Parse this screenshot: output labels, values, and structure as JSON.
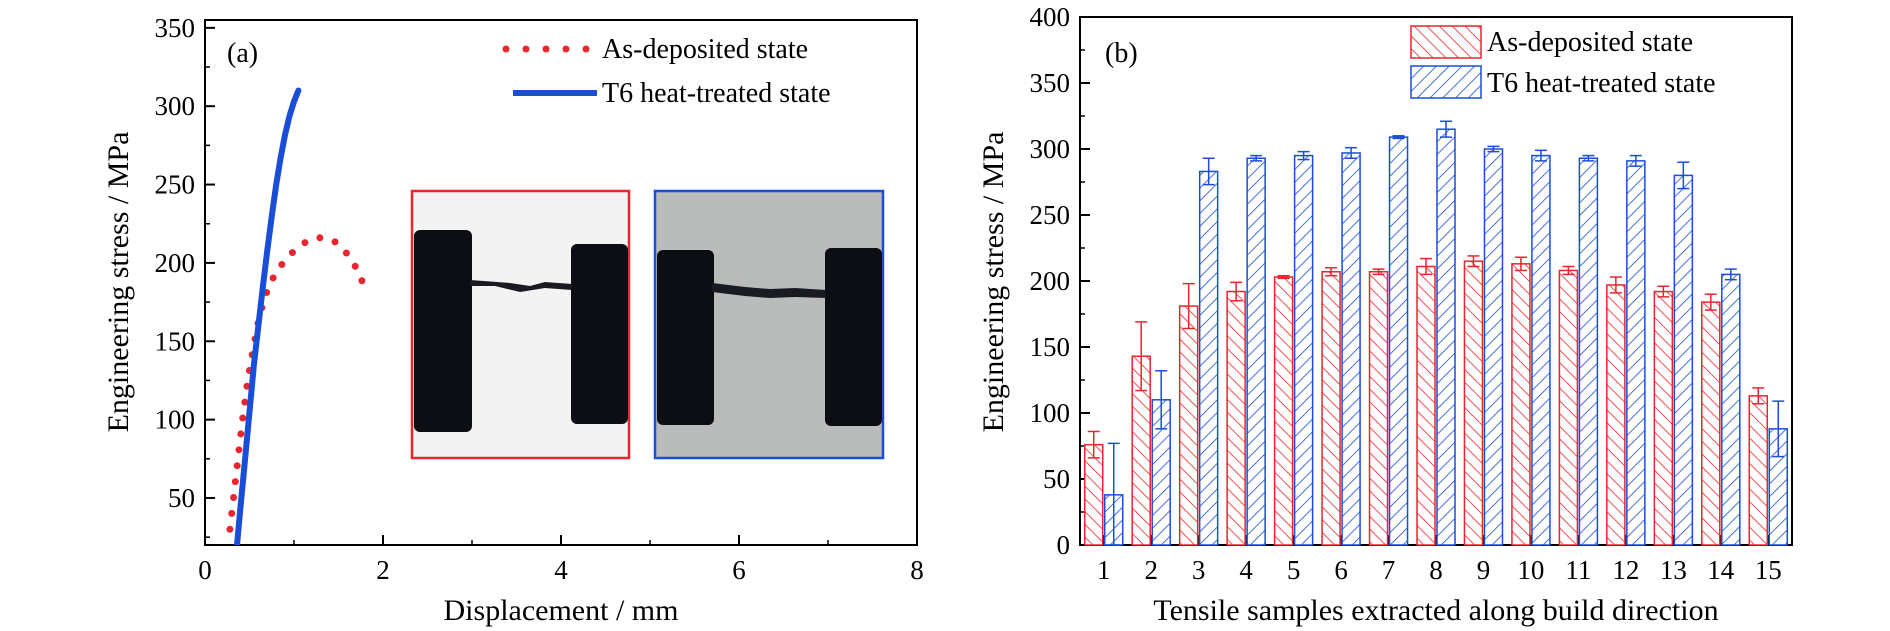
{
  "chart_data": [
    {
      "panel": "(a)",
      "type": "line",
      "xlabel": "Displacement / mm",
      "ylabel": "Engineering stress / MPa",
      "xlim": [
        0,
        8
      ],
      "ylim": [
        20,
        355
      ],
      "xticks": [
        0,
        2,
        4,
        6,
        8
      ],
      "yticks": [
        50,
        100,
        150,
        200,
        250,
        300,
        350
      ],
      "legend_position": "top-right",
      "series": [
        {
          "name": "As-deposited state",
          "style": "dotted",
          "color": "#e8262f",
          "x": [
            0.28,
            0.33,
            0.38,
            0.43,
            0.48,
            0.54,
            0.6,
            0.67,
            0.75,
            0.85,
            0.95,
            1.05,
            1.15,
            1.25,
            1.35,
            1.45,
            1.55,
            1.65,
            1.74,
            1.82
          ],
          "y": [
            30,
            55,
            80,
            104,
            125,
            145,
            163,
            178,
            189,
            198,
            205,
            210,
            214,
            216,
            216,
            214,
            209,
            202,
            192,
            180
          ]
        },
        {
          "name": "T6 heat-treated state",
          "style": "solid",
          "color": "#1b4ed8",
          "x": [
            0.36,
            0.4,
            0.45,
            0.5,
            0.55,
            0.6,
            0.65,
            0.7,
            0.75,
            0.8,
            0.85,
            0.9,
            0.95,
            1.0,
            1.05
          ],
          "y": [
            20,
            45,
            75,
            105,
            135,
            160,
            185,
            208,
            230,
            250,
            267,
            282,
            294,
            303,
            310
          ]
        }
      ],
      "insets": [
        {
          "border_color": "#e8262f",
          "background": "#f3f3f3"
        },
        {
          "border_color": "#1b4ed8",
          "background": "#b9bcba"
        }
      ]
    },
    {
      "panel": "(b)",
      "type": "bar",
      "xlabel": "Tensile samples extracted along build direction",
      "ylabel": "Engineering stress / MPa",
      "ylim": [
        0,
        400
      ],
      "yticks": [
        0,
        50,
        100,
        150,
        200,
        250,
        300,
        350,
        400
      ],
      "legend_position": "top-right",
      "categories": [
        "1",
        "2",
        "3",
        "4",
        "5",
        "6",
        "7",
        "8",
        "9",
        "10",
        "11",
        "12",
        "13",
        "14",
        "15"
      ],
      "series": [
        {
          "name": "As-deposited state",
          "color": "#e8262f",
          "values": [
            76,
            143,
            181,
            192,
            203,
            207,
            207,
            211,
            215,
            213,
            208,
            197,
            192,
            184,
            113
          ],
          "errors": [
            10,
            26,
            17,
            7,
            1,
            3,
            2,
            6,
            4,
            5,
            3,
            6,
            4,
            6,
            6
          ]
        },
        {
          "name": "T6 heat-treated state",
          "color": "#1b4ed8",
          "values": [
            38,
            110,
            283,
            293,
            295,
            297,
            309,
            315,
            300,
            295,
            293,
            291,
            280,
            205,
            88
          ],
          "errors": [
            39,
            22,
            10,
            2,
            3,
            4,
            1,
            6,
            2,
            4,
            2,
            4,
            10,
            4,
            21
          ]
        }
      ]
    }
  ]
}
